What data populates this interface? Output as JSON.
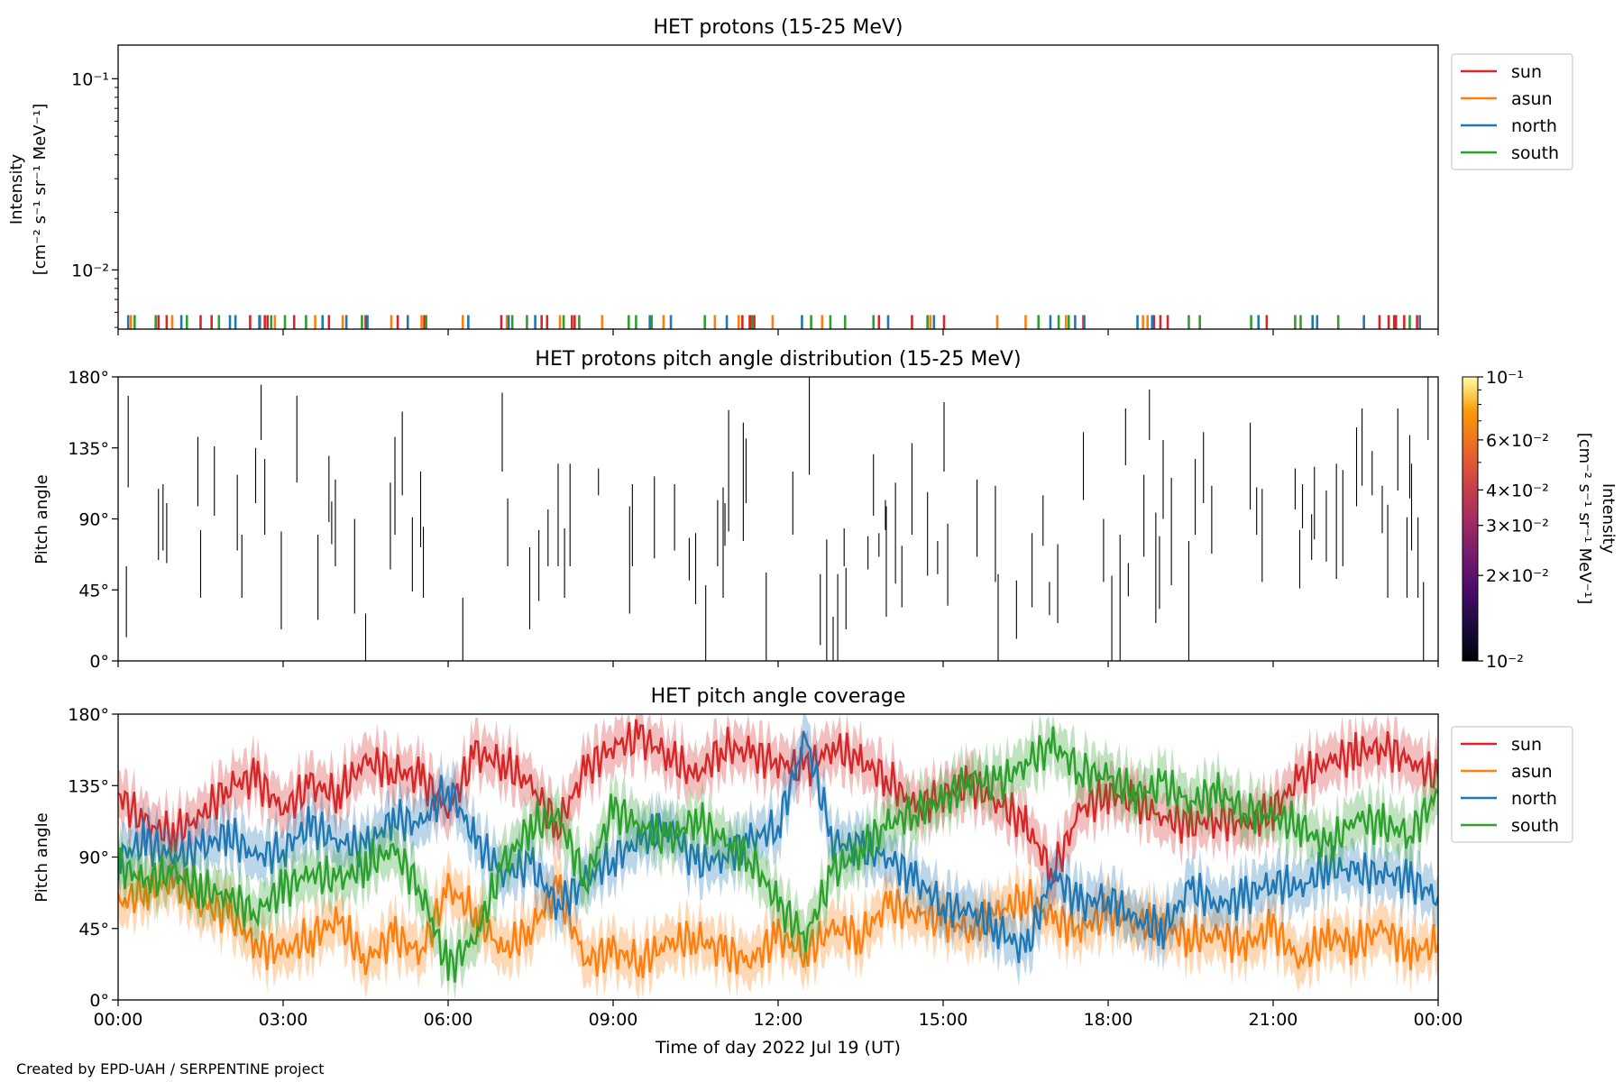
{
  "credit": "Created by EPD-UAH / SERPENTINE project",
  "chart_data": [
    {
      "type": "line",
      "title": "HET protons (15-25 MeV)",
      "ylabel": "Intensity",
      "yunit_label": "[cm⁻² s⁻¹ sr⁻¹ MeV⁻¹]",
      "yscale": "log",
      "ylim": [
        0.0049,
        0.15
      ],
      "yticks": [
        {
          "value": 0.01,
          "label": "10⁻²"
        },
        {
          "value": 0.1,
          "label": "10⁻¹"
        }
      ],
      "xlim_hours": [
        0,
        24
      ],
      "legend_position": "outside-right",
      "series": [
        {
          "name": "sun",
          "color": "#d62728",
          "spike_times": [
            "00:44",
            "00:53",
            "01:30",
            "01:42",
            "02:24",
            "02:40",
            "02:43",
            "03:12",
            "03:50",
            "04:30",
            "05:05",
            "05:34",
            "06:58",
            "07:42",
            "07:48",
            "08:15",
            "08:18",
            "11:21",
            "11:29",
            "11:31",
            "11:34",
            "13:50",
            "14:26",
            "15:01",
            "17:33",
            "18:50",
            "18:57",
            "19:05",
            "20:53",
            "22:56",
            "23:06",
            "23:12",
            "23:14",
            "23:23",
            "23:37"
          ],
          "values": 0.0058
        },
        {
          "name": "asun",
          "color": "#ff7f0e",
          "spike_times": [
            "00:14",
            "00:59",
            "02:35",
            "02:51",
            "03:35",
            "04:05",
            "04:58",
            "05:31",
            "06:16",
            "07:04",
            "08:02",
            "08:48",
            "09:55",
            "10:51",
            "11:17",
            "11:54",
            "12:48",
            "14:46",
            "15:59",
            "16:30",
            "17:14",
            "18:38",
            "18:43"
          ],
          "values": 0.0058
        },
        {
          "name": "north",
          "color": "#1f77b4",
          "spike_times": [
            "00:11",
            "01:09",
            "02:02",
            "02:08",
            "02:34",
            "03:43",
            "04:09",
            "04:32",
            "05:16",
            "06:22",
            "07:06",
            "07:35",
            "09:40",
            "10:03",
            "11:04",
            "12:26",
            "14:00",
            "14:43",
            "14:50",
            "16:57",
            "17:24",
            "17:34",
            "18:32",
            "18:48",
            "20:44",
            "21:43",
            "21:48",
            "22:39",
            "23:40"
          ],
          "values": 0.0058
        },
        {
          "name": "south",
          "color": "#2ca02c",
          "spike_times": [
            "00:18",
            "00:41",
            "01:15",
            "01:50",
            "02:47",
            "03:02",
            "03:25",
            "04:26",
            "05:36",
            "07:10",
            "07:26",
            "08:06",
            "08:23",
            "09:17",
            "09:25",
            "09:42",
            "10:40",
            "11:32",
            "12:36",
            "12:57",
            "13:13",
            "13:44",
            "14:43",
            "16:44",
            "17:06",
            "17:17",
            "19:28",
            "19:40",
            "20:36",
            "21:24",
            "21:30",
            "22:11",
            "23:29"
          ],
          "values": 0.0058
        }
      ]
    },
    {
      "type": "heatmap",
      "title": "HET protons pitch angle distribution (15-25 MeV)",
      "ylabel": "Pitch angle",
      "ylim": [
        0,
        180
      ],
      "yticks": [
        "0°",
        "45°",
        "90°",
        "135°",
        "180°"
      ],
      "xlim_hours": [
        0,
        24
      ],
      "colorbar": {
        "label": "Intensity",
        "unit_label": "[cm⁻² s⁻¹ sr⁻¹ MeV⁻¹]",
        "scale": "log",
        "range": [
          0.01,
          0.1
        ],
        "colormap": "inferno",
        "tick_labels": [
          {
            "value": 0.01,
            "label": "10⁻²"
          },
          {
            "value": 0.02,
            "label": "2×10⁻²"
          },
          {
            "value": 0.03,
            "label": "3×10⁻²"
          },
          {
            "value": 0.04,
            "label": "4×10⁻²"
          },
          {
            "value": 0.06,
            "label": "6×10⁻²"
          },
          {
            "value": 0.1,
            "label": "10⁻¹"
          }
        ]
      },
      "segments_note": "[time_of_day, pitch_low_deg, pitch_high_deg]",
      "segments": [
        [
          "00:09",
          15,
          60
        ],
        [
          "00:11",
          110,
          168
        ],
        [
          "00:44",
          64,
          109
        ],
        [
          "00:49",
          70,
          112
        ],
        [
          "00:53",
          62,
          100
        ],
        [
          "01:27",
          98,
          142
        ],
        [
          "01:30",
          40,
          83
        ],
        [
          "01:45",
          92,
          136
        ],
        [
          "02:10",
          70,
          118
        ],
        [
          "02:15",
          40,
          80
        ],
        [
          "02:30",
          100,
          135
        ],
        [
          "02:36",
          140,
          175
        ],
        [
          "02:40",
          80,
          128
        ],
        [
          "02:58",
          20,
          82
        ],
        [
          "03:15",
          113,
          168
        ],
        [
          "03:38",
          26,
          80
        ],
        [
          "03:50",
          88,
          130
        ],
        [
          "03:53",
          74,
          101
        ],
        [
          "03:57",
          60,
          115
        ],
        [
          "04:18",
          30,
          90
        ],
        [
          "04:30",
          0,
          30
        ],
        [
          "04:57",
          58,
          113
        ],
        [
          "05:02",
          80,
          142
        ],
        [
          "05:10",
          105,
          158
        ],
        [
          "05:21",
          44,
          91
        ],
        [
          "05:30",
          72,
          120
        ],
        [
          "05:33",
          40,
          85
        ],
        [
          "06:16",
          0,
          40
        ],
        [
          "06:59",
          120,
          170
        ],
        [
          "07:05",
          60,
          103
        ],
        [
          "07:29",
          20,
          72
        ],
        [
          "07:39",
          38,
          83
        ],
        [
          "07:49",
          60,
          96
        ],
        [
          "08:00",
          60,
          125
        ],
        [
          "08:07",
          40,
          84
        ],
        [
          "08:13",
          60,
          125
        ],
        [
          "08:44",
          105,
          122
        ],
        [
          "09:18",
          30,
          98
        ],
        [
          "09:21",
          60,
          112
        ],
        [
          "09:45",
          65,
          117
        ],
        [
          "10:07",
          70,
          112
        ],
        [
          "10:23",
          51,
          78
        ],
        [
          "10:30",
          36,
          81
        ],
        [
          "10:41",
          0,
          48
        ],
        [
          "10:54",
          60,
          102
        ],
        [
          "11:00",
          40,
          110
        ],
        [
          "11:02",
          73,
          100
        ],
        [
          "11:06",
          82,
          159
        ],
        [
          "11:22",
          76,
          151
        ],
        [
          "11:25",
          100,
          141
        ],
        [
          "11:47",
          0,
          56
        ],
        [
          "12:16",
          80,
          120
        ],
        [
          "12:34",
          118,
          180
        ],
        [
          "12:46",
          10,
          55
        ],
        [
          "12:53",
          0,
          77
        ],
        [
          "13:00",
          0,
          28
        ],
        [
          "13:05",
          0,
          55
        ],
        [
          "13:12",
          60,
          84
        ],
        [
          "13:14",
          20,
          59
        ],
        [
          "13:38",
          58,
          79
        ],
        [
          "13:44",
          92,
          131
        ],
        [
          "13:50",
          66,
          81
        ],
        [
          "13:58",
          28,
          98
        ],
        [
          "13:57",
          83,
          102
        ],
        [
          "14:08",
          49,
          113
        ],
        [
          "14:15",
          34,
          73
        ],
        [
          "14:26",
          80,
          138
        ],
        [
          "14:43",
          54,
          107
        ],
        [
          "14:54",
          55,
          76
        ],
        [
          "15:01",
          120,
          164
        ],
        [
          "15:05",
          35,
          87
        ],
        [
          "15:37",
          66,
          115
        ],
        [
          "15:57",
          50,
          111
        ],
        [
          "16:00",
          0,
          55
        ],
        [
          "16:20",
          14,
          51
        ],
        [
          "16:37",
          34,
          81
        ],
        [
          "16:49",
          73,
          105
        ],
        [
          "16:56",
          29,
          50
        ],
        [
          "17:05",
          24,
          74
        ],
        [
          "17:33",
          102,
          145
        ],
        [
          "17:55",
          50,
          90
        ],
        [
          "18:04",
          0,
          54
        ],
        [
          "18:13",
          0,
          80
        ],
        [
          "18:19",
          124,
          160
        ],
        [
          "18:22",
          41,
          62
        ],
        [
          "18:39",
          66,
          118
        ],
        [
          "18:45",
          140,
          172
        ],
        [
          "18:52",
          24,
          94
        ],
        [
          "18:56",
          33,
          79
        ],
        [
          "19:00",
          90,
          140
        ],
        [
          "19:09",
          48,
          116
        ],
        [
          "19:28",
          0,
          76
        ],
        [
          "19:35",
          80,
          128
        ],
        [
          "19:44",
          100,
          145
        ],
        [
          "19:53",
          68,
          111
        ],
        [
          "20:35",
          96,
          151
        ],
        [
          "20:42",
          80,
          110
        ],
        [
          "20:48",
          50,
          109
        ],
        [
          "21:24",
          96,
          122
        ],
        [
          "21:29",
          46,
          83
        ],
        [
          "21:32",
          84,
          112
        ],
        [
          "21:42",
          64,
          93
        ],
        [
          "21:45",
          77,
          123
        ],
        [
          "21:58",
          63,
          108
        ],
        [
          "22:09",
          52,
          125
        ],
        [
          "22:16",
          60,
          121
        ],
        [
          "22:31",
          98,
          148
        ],
        [
          "22:37",
          111,
          160
        ],
        [
          "22:48",
          105,
          133
        ],
        [
          "22:59",
          81,
          111
        ],
        [
          "23:05",
          40,
          99
        ],
        [
          "23:16",
          108,
          160
        ],
        [
          "23:26",
          40,
          91
        ],
        [
          "23:29",
          103,
          143
        ],
        [
          "23:31",
          70,
          125
        ],
        [
          "23:38",
          40,
          91
        ],
        [
          "23:44",
          0,
          50
        ],
        [
          "23:49",
          140,
          180
        ]
      ]
    },
    {
      "type": "area",
      "title": "HET pitch angle coverage",
      "ylabel": "Pitch angle",
      "xlabel": "Time of day 2022 Jul 19 (UT)",
      "ylim": [
        0,
        180
      ],
      "yticks": [
        "0°",
        "45°",
        "90°",
        "135°",
        "180°"
      ],
      "xticks": [
        "00:00",
        "03:00",
        "06:00",
        "09:00",
        "12:00",
        "15:00",
        "18:00",
        "21:00",
        "00:00"
      ],
      "legend_position": "outside-right",
      "x_hours": [
        0,
        0.5,
        1,
        1.5,
        2,
        2.5,
        3,
        3.5,
        4,
        4.5,
        5,
        5.5,
        6,
        6.5,
        7,
        7.5,
        8,
        8.5,
        9,
        9.5,
        10,
        10.5,
        11,
        11.5,
        12,
        12.5,
        13,
        13.5,
        14,
        14.5,
        15,
        15.5,
        16,
        16.5,
        17,
        17.5,
        18,
        18.5,
        19,
        19.5,
        20,
        20.5,
        21,
        21.5,
        22,
        22.5,
        23,
        23.5,
        24
      ],
      "series": [
        {
          "name": "sun",
          "color": "#d62728",
          "values": [
            130,
            110,
            105,
            115,
            135,
            140,
            120,
            135,
            130,
            150,
            145,
            140,
            120,
            155,
            150,
            135,
            110,
            145,
            160,
            165,
            155,
            140,
            160,
            155,
            150,
            145,
            160,
            150,
            140,
            120,
            130,
            135,
            125,
            110,
            80,
            120,
            130,
            125,
            115,
            110,
            115,
            110,
            120,
            140,
            150,
            155,
            160,
            150,
            140
          ],
          "band_halfwidth": 15
        },
        {
          "name": "asun",
          "color": "#ff7f0e",
          "values": [
            60,
            70,
            75,
            60,
            55,
            35,
            30,
            40,
            50,
            25,
            40,
            30,
            70,
            55,
            30,
            45,
            70,
            25,
            30,
            25,
            35,
            40,
            30,
            25,
            40,
            30,
            45,
            40,
            60,
            55,
            50,
            45,
            55,
            65,
            50,
            45,
            55,
            50,
            45,
            40,
            40,
            35,
            45,
            25,
            40,
            35,
            45,
            30,
            35
          ],
          "band_halfwidth": 15
        },
        {
          "name": "north",
          "color": "#1f77b4",
          "values": [
            90,
            100,
            90,
            95,
            105,
            90,
            95,
            110,
            100,
            95,
            115,
            110,
            135,
            100,
            80,
            85,
            60,
            75,
            90,
            100,
            110,
            85,
            90,
            100,
            110,
            165,
            100,
            95,
            90,
            75,
            60,
            55,
            45,
            30,
            80,
            60,
            65,
            50,
            45,
            70,
            60,
            65,
            75,
            70,
            85,
            80,
            80,
            75,
            65
          ],
          "band_halfwidth": 15
        },
        {
          "name": "south",
          "color": "#2ca02c",
          "values": [
            85,
            75,
            80,
            70,
            65,
            55,
            70,
            80,
            75,
            85,
            95,
            70,
            20,
            40,
            85,
            110,
            115,
            75,
            120,
            110,
            100,
            115,
            100,
            90,
            60,
            40,
            80,
            95,
            110,
            120,
            125,
            140,
            135,
            150,
            160,
            145,
            140,
            130,
            135,
            125,
            130,
            120,
            115,
            110,
            95,
            115,
            110,
            105,
            130
          ],
          "band_halfwidth": 15
        }
      ]
    }
  ]
}
